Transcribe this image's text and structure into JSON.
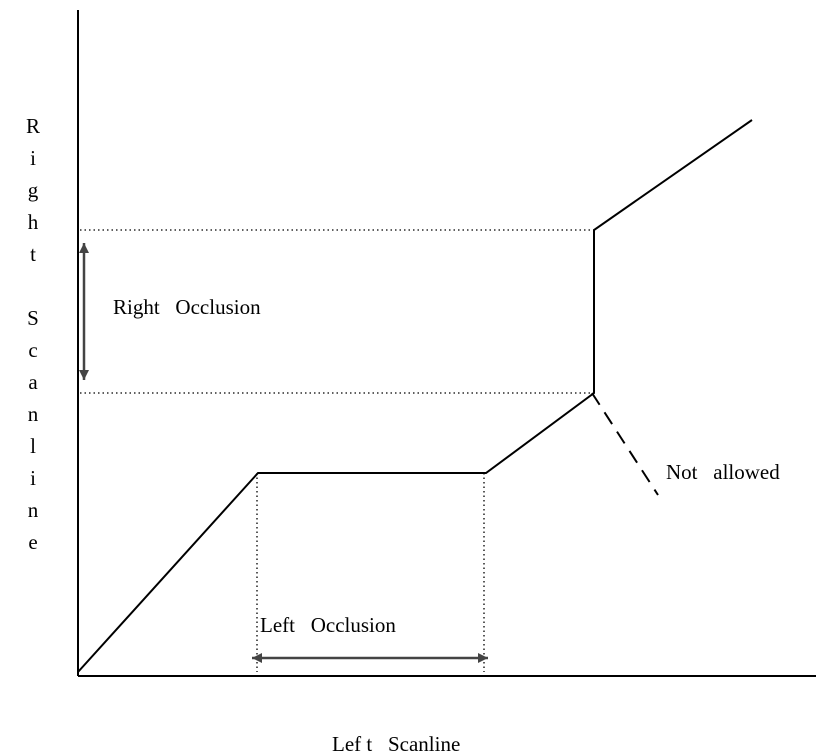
{
  "diagram": {
    "y_axis_label": "Right Scanline",
    "x_axis_label": "Lef t   Scanline",
    "right_occlusion_label": "Right   Occlusion",
    "left_occlusion_label": "Left   Occlusion",
    "not_allowed_label": "Not   allowed"
  }
}
